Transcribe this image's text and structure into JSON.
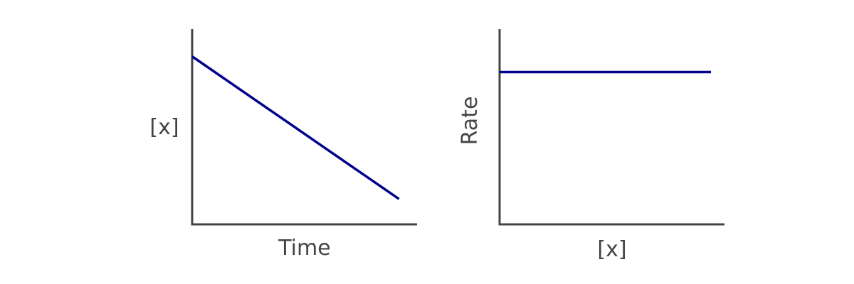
{
  "chart_data": [
    {
      "type": "line",
      "xlabel": "Time",
      "ylabel": "[x]",
      "xlim": [
        0,
        1
      ],
      "ylim": [
        0,
        1
      ],
      "grid": false,
      "series": [
        {
          "x": [
            0,
            0.92
          ],
          "y": [
            0.86,
            0.13
          ],
          "color": "#00008b"
        }
      ]
    },
    {
      "type": "line",
      "xlabel": "[x]",
      "ylabel": "Rate",
      "xlim": [
        0,
        1
      ],
      "ylim": [
        0,
        1
      ],
      "grid": false,
      "series": [
        {
          "x": [
            0,
            0.94
          ],
          "y": [
            0.78,
            0.78
          ],
          "color": "#00008b"
        }
      ]
    }
  ]
}
